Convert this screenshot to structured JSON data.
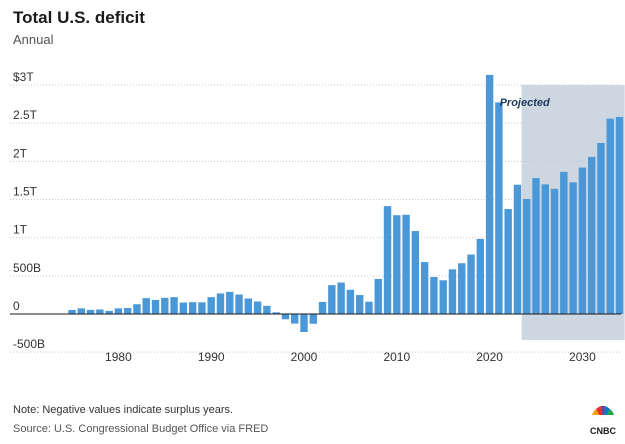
{
  "header": {
    "title": "Total U.S. deficit",
    "subtitle": "Annual"
  },
  "footer": {
    "note": "Note: Negative values indicate surplus years.",
    "source": "Source: U.S. Congressional Budget Office via FRED",
    "logo_text": "CNBC"
  },
  "colors": {
    "bar": "#4a98d8",
    "projection_band": "#cdd7e2",
    "zero_line": "#1a1a1a",
    "grid": "#c9c9c9"
  },
  "chart_data": {
    "type": "bar",
    "title": "Total U.S. deficit",
    "subtitle": "Annual",
    "xlabel": "",
    "ylabel": "",
    "x": [
      1975,
      1976,
      1977,
      1978,
      1979,
      1980,
      1981,
      1982,
      1983,
      1984,
      1985,
      1986,
      1987,
      1988,
      1989,
      1990,
      1991,
      1992,
      1993,
      1994,
      1995,
      1996,
      1997,
      1998,
      1999,
      2000,
      2001,
      2002,
      2003,
      2004,
      2005,
      2006,
      2007,
      2008,
      2009,
      2010,
      2011,
      2012,
      2013,
      2014,
      2015,
      2016,
      2017,
      2018,
      2019,
      2020,
      2021,
      2022,
      2023,
      2024,
      2025,
      2026,
      2027,
      2028,
      2029,
      2030,
      2031,
      2032,
      2033,
      2034
    ],
    "values": [
      53,
      74,
      54,
      59,
      41,
      74,
      79,
      128,
      208,
      185,
      212,
      221,
      150,
      155,
      153,
      221,
      269,
      290,
      255,
      203,
      164,
      107,
      22,
      -69,
      -126,
      -236,
      -128,
      158,
      378,
      413,
      318,
      248,
      161,
      459,
      1413,
      1294,
      1300,
      1087,
      680,
      485,
      442,
      585,
      665,
      779,
      984,
      3132,
      2772,
      1376,
      1694,
      1507,
      1781,
      1699,
      1640,
      1862,
      1725,
      1918,
      2058,
      2240,
      2559,
      2582
    ],
    "ylim": [
      -500,
      3000
    ],
    "yticks": [
      -500,
      0,
      500,
      1000,
      1500,
      2000,
      2500,
      3000
    ],
    "ytick_labels": [
      "-500B",
      "0",
      "500B",
      "1T",
      "1.5T",
      "2T",
      "2.5T",
      "$3T"
    ],
    "xticks": [
      1980,
      1990,
      2000,
      2010,
      2020,
      2030
    ],
    "xtick_labels": [
      "1980",
      "1990",
      "2000",
      "2010",
      "2020",
      "2030"
    ],
    "projection": {
      "start": 2024,
      "end": 2034,
      "label": "Projected"
    },
    "grid": "horizontal dotted",
    "legend": "none"
  }
}
